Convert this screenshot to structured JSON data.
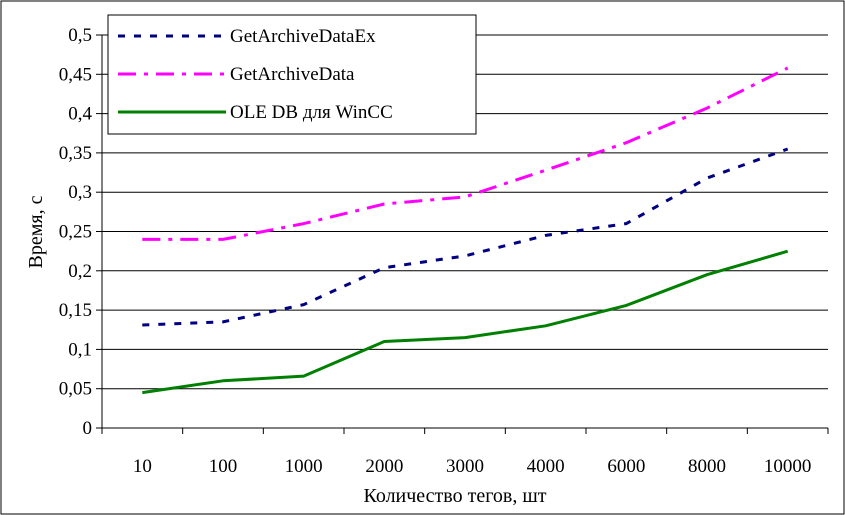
{
  "chart_data": {
    "type": "line",
    "xlabel": "Количество тегов, шт",
    "ylabel": "Время, с",
    "categories": [
      "10",
      "100",
      "1000",
      "2000",
      "3000",
      "4000",
      "6000",
      "8000",
      "10000"
    ],
    "yticks": [
      "0",
      "0,05",
      "0,1",
      "0,15",
      "0,2",
      "0,25",
      "0,3",
      "0,35",
      "0,4",
      "0,45",
      "0,5"
    ],
    "ylim": [
      0,
      0.5
    ],
    "grid": "horizontal",
    "legend_position": "top-left",
    "series": [
      {
        "name": "GetArchiveDataEx",
        "color": "#000080",
        "style": "dotted",
        "values": [
          0.131,
          0.135,
          0.157,
          0.204,
          0.219,
          0.245,
          0.26,
          0.318,
          0.355
        ]
      },
      {
        "name": "GetArchiveData",
        "color": "#ff00ff",
        "style": "dash-dot",
        "values": [
          0.24,
          0.24,
          0.26,
          0.285,
          0.294,
          0.328,
          0.363,
          0.407,
          0.458
        ]
      },
      {
        "name": "OLE DB для WinCC",
        "color": "#008000",
        "style": "solid",
        "values": [
          0.045,
          0.06,
          0.066,
          0.11,
          0.115,
          0.13,
          0.156,
          0.195,
          0.225
        ]
      }
    ]
  }
}
